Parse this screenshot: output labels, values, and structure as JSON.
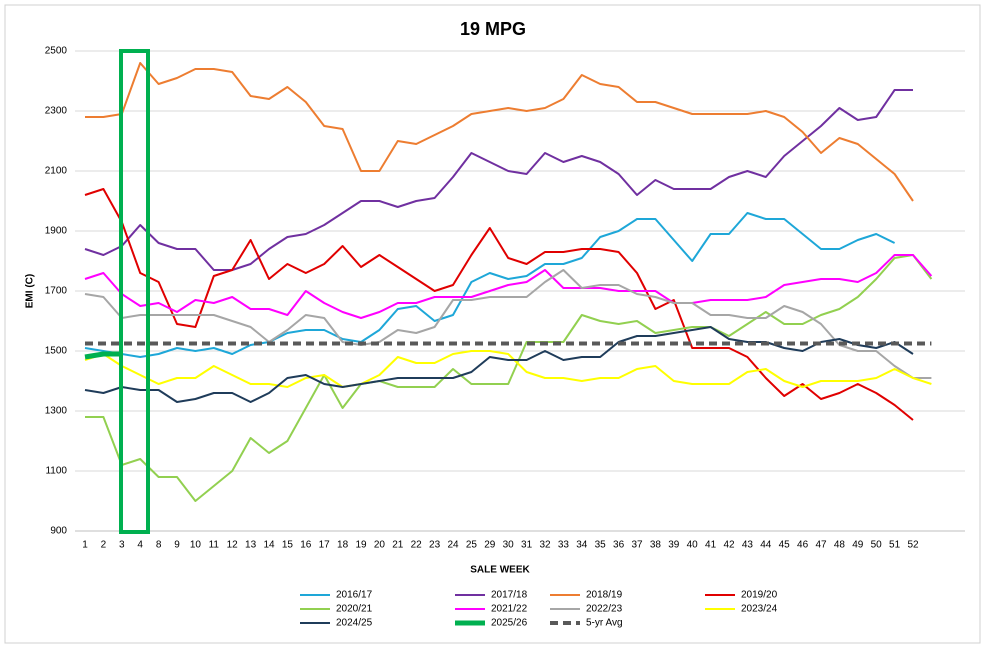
{
  "chart_data": {
    "type": "line",
    "title": "19 MPG",
    "x_label": "SALE WEEK",
    "y_label": "EMI (C)",
    "categories": [
      "1",
      "2",
      "3",
      "4",
      "8",
      "9",
      "10",
      "11",
      "12",
      "13",
      "14",
      "15",
      "16",
      "17",
      "18",
      "19",
      "20",
      "21",
      "22",
      "23",
      "24",
      "25",
      "29",
      "30",
      "31",
      "32",
      "33",
      "34",
      "35",
      "36",
      "37",
      "38",
      "39",
      "40",
      "41",
      "42",
      "43",
      "44",
      "45",
      "46",
      "47",
      "48",
      "49",
      "50",
      "51",
      "52",
      null
    ],
    "ylim": [
      900,
      2500
    ],
    "yticks": [
      900,
      1100,
      1300,
      1500,
      1700,
      1900,
      2100,
      2300,
      2500
    ],
    "grid": true,
    "series": [
      {
        "name": "2016/17",
        "color": "#1ea7d8",
        "values": [
          1510,
          1500,
          1490,
          1480,
          1490,
          1510,
          1500,
          1510,
          1490,
          1520,
          1530,
          1560,
          1570,
          1570,
          1540,
          1530,
          1570,
          1640,
          1650,
          1600,
          1620,
          1730,
          1760,
          1740,
          1750,
          1790,
          1790,
          1810,
          1880,
          1900,
          1940,
          1940,
          1870,
          1800,
          1890,
          1890,
          1960,
          1940,
          1940,
          1890,
          1840,
          1840,
          1870,
          1890,
          1860,
          null,
          null
        ]
      },
      {
        "name": "2017/18",
        "color": "#7030a0",
        "values": [
          1840,
          1820,
          1850,
          1920,
          1860,
          1840,
          1840,
          1770,
          1770,
          1790,
          1840,
          1880,
          1890,
          1920,
          1960,
          2000,
          2000,
          1980,
          2000,
          2010,
          2080,
          2160,
          2130,
          2100,
          2090,
          2160,
          2130,
          2150,
          2130,
          2090,
          2020,
          2070,
          2040,
          2040,
          2040,
          2080,
          2100,
          2080,
          2150,
          2200,
          2250,
          2310,
          2270,
          2280,
          2370,
          2370,
          null
        ]
      },
      {
        "name": "2018/19",
        "color": "#ed7d31",
        "values": [
          2280,
          2280,
          2290,
          2460,
          2390,
          2410,
          2440,
          2440,
          2430,
          2350,
          2340,
          2380,
          2330,
          2250,
          2240,
          2100,
          2100,
          2200,
          2190,
          2220,
          2250,
          2290,
          2300,
          2310,
          2300,
          2310,
          2340,
          2420,
          2390,
          2380,
          2330,
          2330,
          2310,
          2290,
          2290,
          2290,
          2290,
          2300,
          2280,
          2230,
          2160,
          2210,
          2190,
          2140,
          2090,
          2000,
          null
        ]
      },
      {
        "name": "2019/20",
        "color": "#e00000",
        "values": [
          2020,
          2040,
          1930,
          1760,
          1730,
          1590,
          1580,
          1750,
          1770,
          1870,
          1740,
          1790,
          1760,
          1790,
          1850,
          1780,
          1820,
          1780,
          1740,
          1700,
          1720,
          1820,
          1910,
          1810,
          1790,
          1830,
          1830,
          1840,
          1840,
          1830,
          1760,
          1640,
          1670,
          1510,
          1510,
          1510,
          1480,
          1410,
          1350,
          1390,
          1340,
          1360,
          1390,
          1360,
          1320,
          1270,
          null
        ]
      },
      {
        "name": "2020/21",
        "color": "#92d050",
        "values": [
          1280,
          1280,
          1120,
          1140,
          1080,
          1080,
          1000,
          1050,
          1100,
          1210,
          1160,
          1200,
          1310,
          1420,
          1310,
          1390,
          1400,
          1380,
          1380,
          1380,
          1440,
          1390,
          1390,
          1390,
          1530,
          1530,
          1530,
          1620,
          1600,
          1590,
          1600,
          1560,
          1570,
          1580,
          1580,
          1550,
          1590,
          1630,
          1590,
          1590,
          1620,
          1640,
          1680,
          1740,
          1810,
          1820,
          1740
        ]
      },
      {
        "name": "2021/22",
        "color": "#ff00ff",
        "values": [
          1740,
          1760,
          1690,
          1650,
          1660,
          1630,
          1670,
          1660,
          1680,
          1640,
          1640,
          1620,
          1700,
          1660,
          1630,
          1610,
          1630,
          1660,
          1660,
          1680,
          1680,
          1680,
          1700,
          1720,
          1730,
          1770,
          1710,
          1710,
          1710,
          1700,
          1700,
          1700,
          1660,
          1660,
          1670,
          1670,
          1670,
          1680,
          1720,
          1730,
          1740,
          1740,
          1730,
          1760,
          1820,
          1820,
          1750
        ]
      },
      {
        "name": "2022/23",
        "color": "#a6a6a6",
        "values": [
          1690,
          1680,
          1610,
          1620,
          1620,
          1620,
          1620,
          1620,
          1600,
          1580,
          1530,
          1570,
          1620,
          1610,
          1530,
          1520,
          1530,
          1570,
          1560,
          1580,
          1670,
          1670,
          1680,
          1680,
          1680,
          1730,
          1770,
          1710,
          1720,
          1720,
          1690,
          1680,
          1660,
          1660,
          1620,
          1620,
          1610,
          1610,
          1650,
          1630,
          1590,
          1520,
          1500,
          1500,
          1450,
          1410,
          1410
        ]
      },
      {
        "name": "2023/24",
        "color": "#ffff00",
        "values": [
          1470,
          1490,
          1450,
          1420,
          1390,
          1410,
          1410,
          1450,
          1420,
          1390,
          1390,
          1380,
          1410,
          1420,
          1380,
          1390,
          1420,
          1480,
          1460,
          1460,
          1490,
          1500,
          1500,
          1490,
          1430,
          1410,
          1410,
          1400,
          1410,
          1410,
          1440,
          1450,
          1400,
          1390,
          1390,
          1390,
          1430,
          1440,
          1400,
          1380,
          1400,
          1400,
          1400,
          1410,
          1440,
          1410,
          1390
        ]
      },
      {
        "name": "2024/25",
        "color": "#1f3c5a",
        "values": [
          1370,
          1360,
          1380,
          1370,
          1370,
          1330,
          1340,
          1360,
          1360,
          1330,
          1360,
          1410,
          1420,
          1390,
          1380,
          1390,
          1400,
          1410,
          1410,
          1410,
          1410,
          1430,
          1480,
          1470,
          1470,
          1500,
          1470,
          1480,
          1480,
          1530,
          1550,
          1550,
          1560,
          1570,
          1580,
          1540,
          1530,
          1530,
          1510,
          1500,
          1530,
          1540,
          1520,
          1510,
          1530,
          1490,
          null
        ]
      },
      {
        "name": "2025/26",
        "color": "#00b050",
        "line_width": 5,
        "values": [
          1480,
          1490,
          1490,
          null,
          null,
          null,
          null,
          null,
          null,
          null,
          null,
          null,
          null,
          null,
          null,
          null,
          null,
          null,
          null,
          null,
          null,
          null,
          null,
          null,
          null,
          null,
          null,
          null,
          null,
          null,
          null,
          null,
          null,
          null,
          null,
          null,
          null,
          null,
          null,
          null,
          null,
          null,
          null,
          null,
          null,
          null,
          null
        ]
      },
      {
        "name": "5-yr Avg",
        "color": "#595959",
        "line_width": 4,
        "dash": true,
        "values": [
          1525,
          1525,
          1525,
          1525,
          1525,
          1525,
          1525,
          1525,
          1525,
          1525,
          1525,
          1525,
          1525,
          1525,
          1525,
          1525,
          1525,
          1525,
          1525,
          1525,
          1525,
          1525,
          1525,
          1525,
          1525,
          1525,
          1525,
          1525,
          1525,
          1525,
          1525,
          1525,
          1525,
          1525,
          1525,
          1525,
          1525,
          1525,
          1525,
          1525,
          1525,
          1525,
          1525,
          1525,
          1525,
          1525,
          1525
        ]
      }
    ]
  }
}
